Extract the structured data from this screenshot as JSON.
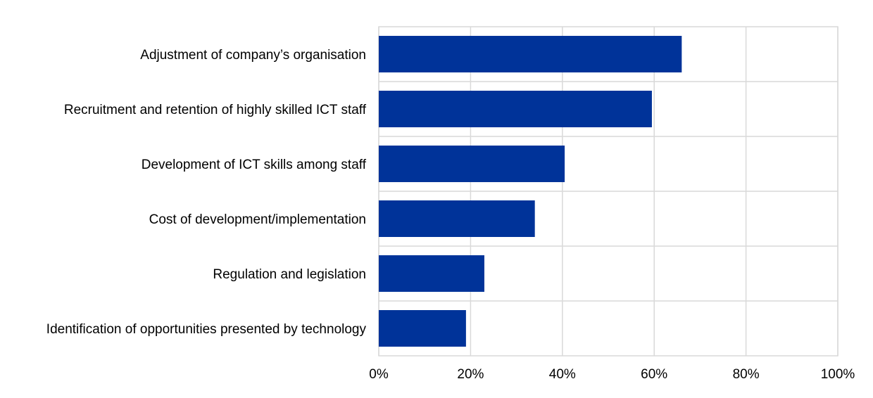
{
  "chart_data": {
    "type": "bar",
    "orientation": "horizontal",
    "categories": [
      "Adjustment of company’s organisation",
      "Recruitment and retention of highly skilled ICT staff",
      "Development of ICT skills among staff",
      "Cost of development/implementation",
      "Regulation and legislation",
      "Identification of opportunities presented by technology"
    ],
    "values": [
      66,
      59.5,
      40.5,
      34,
      23,
      19
    ],
    "xlim": [
      0,
      100
    ],
    "xticks": [
      "0%",
      "20%",
      "40%",
      "60%",
      "80%",
      "100%"
    ],
    "title": "",
    "xlabel": "",
    "ylabel": "",
    "grid": true,
    "legend": "none",
    "bar_color": "#003399"
  }
}
